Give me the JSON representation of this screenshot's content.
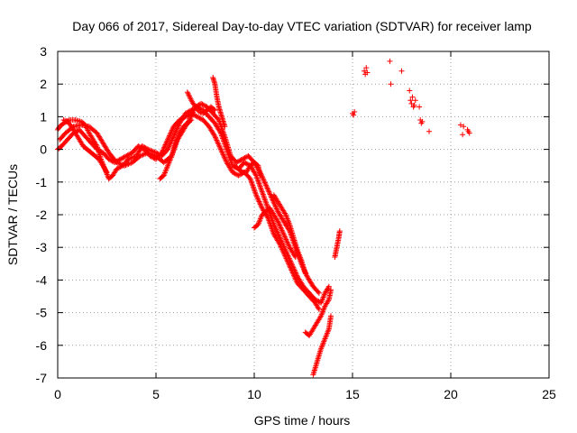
{
  "chart_data": {
    "type": "scatter",
    "title": "Day 066 of 2017, Sidereal Day-to-day VTEC variation (SDTVAR) for receiver lamp",
    "xlabel": "GPS time / hours",
    "ylabel": "SDTVAR / TECUs",
    "xlim": [
      0,
      25
    ],
    "ylim": [
      -7,
      3
    ],
    "xticks": [
      0,
      5,
      10,
      15,
      20,
      25
    ],
    "yticks": [
      -7,
      -6,
      -5,
      -4,
      -3,
      -2,
      -1,
      0,
      1,
      2,
      3
    ],
    "grid": true,
    "marker": "+",
    "colors": {
      "series": "#ff0000",
      "grid": "#a0a0a0",
      "axis": "#000000"
    },
    "series": [
      {
        "name": "SDTVAR",
        "tracks": [
          [
            [
              0,
              0.6
            ],
            [
              0.1,
              0.7
            ],
            [
              0.3,
              0.8
            ],
            [
              0.6,
              0.9
            ],
            [
              0.9,
              0.9
            ],
            [
              1.2,
              0.85
            ],
            [
              1.4,
              0.75
            ],
            [
              1.6,
              0.5
            ],
            [
              1.8,
              0.3
            ],
            [
              2.0,
              0.1
            ],
            [
              2.2,
              -0.3
            ],
            [
              2.4,
              -0.6
            ],
            [
              2.6,
              -0.9
            ],
            [
              2.8,
              -0.8
            ],
            [
              3.0,
              -0.6
            ],
            [
              3.3,
              -0.5
            ],
            [
              3.6,
              -0.3
            ],
            [
              4.0,
              -0.2
            ],
            [
              4.3,
              0.1
            ],
            [
              4.6,
              0.0
            ],
            [
              5.0,
              -0.1
            ],
            [
              5.3,
              -0.2
            ],
            [
              5.6,
              0.0
            ],
            [
              5.9,
              0.4
            ],
            [
              6.2,
              0.8
            ],
            [
              6.5,
              1.1
            ],
            [
              6.8,
              1.2
            ],
            [
              7.1,
              1.3
            ],
            [
              7.4,
              1.2
            ],
            [
              7.7,
              1.0
            ],
            [
              8.0,
              0.8
            ],
            [
              8.3,
              0.5
            ],
            [
              8.6,
              0.0
            ],
            [
              8.9,
              -0.5
            ],
            [
              9.2,
              -0.6
            ],
            [
              9.5,
              -0.4
            ],
            [
              9.8,
              -0.5
            ],
            [
              10.1,
              -0.8
            ],
            [
              10.4,
              -1.3
            ],
            [
              10.7,
              -1.8
            ],
            [
              11.0,
              -2.3
            ],
            [
              11.3,
              -2.7
            ],
            [
              11.6,
              -3.1
            ],
            [
              11.9,
              -3.5
            ],
            [
              12.2,
              -3.9
            ],
            [
              12.5,
              -4.2
            ],
            [
              12.8,
              -4.4
            ],
            [
              13.1,
              -4.6
            ],
            [
              13.4,
              -4.7
            ],
            [
              13.6,
              -4.4
            ],
            [
              13.8,
              -4.2
            ]
          ],
          [
            [
              0,
              0.0
            ],
            [
              0.2,
              0.1
            ],
            [
              0.5,
              0.3
            ],
            [
              0.8,
              0.5
            ],
            [
              1.1,
              0.6
            ],
            [
              1.4,
              0.4
            ],
            [
              1.7,
              0.2
            ],
            [
              2.0,
              0.0
            ],
            [
              2.3,
              -0.1
            ],
            [
              2.6,
              -0.3
            ],
            [
              2.9,
              -0.4
            ],
            [
              3.2,
              -0.3
            ],
            [
              3.5,
              -0.2
            ],
            [
              3.8,
              -0.1
            ],
            [
              4.1,
              0.1
            ],
            [
              4.4,
              0.0
            ],
            [
              4.7,
              -0.2
            ],
            [
              5.0,
              -0.3
            ],
            [
              5.3,
              -0.1
            ],
            [
              5.6,
              0.3
            ],
            [
              5.9,
              0.7
            ],
            [
              6.2,
              0.9
            ],
            [
              6.5,
              1.0
            ],
            [
              6.8,
              1.1
            ],
            [
              7.1,
              1.0
            ],
            [
              7.4,
              0.9
            ],
            [
              7.7,
              0.7
            ],
            [
              8.0,
              0.4
            ],
            [
              8.3,
              0.0
            ],
            [
              8.6,
              -0.4
            ],
            [
              8.9,
              -0.7
            ],
            [
              9.2,
              -0.8
            ],
            [
              9.5,
              -0.7
            ],
            [
              9.8,
              -0.9
            ],
            [
              10.1,
              -1.4
            ],
            [
              10.4,
              -1.8
            ],
            [
              10.7,
              -2.1
            ],
            [
              11.0,
              -2.6
            ],
            [
              11.3,
              -2.9
            ],
            [
              11.6,
              -3.3
            ],
            [
              11.9,
              -3.7
            ],
            [
              12.2,
              -4.1
            ],
            [
              12.5,
              -4.3
            ],
            [
              12.8,
              -4.5
            ],
            [
              13.1,
              -4.7
            ],
            [
              13.3,
              -4.9
            ]
          ],
          [
            [
              0.1,
              0.3
            ],
            [
              0.4,
              0.5
            ],
            [
              0.8,
              0.7
            ],
            [
              1.2,
              0.75
            ],
            [
              1.6,
              0.7
            ],
            [
              2.0,
              0.5
            ],
            [
              2.3,
              0.2
            ],
            [
              2.6,
              -0.1
            ],
            [
              3.0,
              -0.4
            ],
            [
              3.4,
              -0.5
            ],
            [
              3.8,
              -0.4
            ],
            [
              4.2,
              -0.2
            ],
            [
              4.6,
              -0.1
            ],
            [
              5.0,
              -0.2
            ],
            [
              5.4,
              -0.4
            ],
            [
              5.8,
              -0.2
            ],
            [
              6.1,
              0.3
            ],
            [
              6.4,
              0.6
            ],
            [
              6.7,
              0.9
            ],
            [
              7.0,
              1.3
            ],
            [
              7.3,
              1.4
            ],
            [
              7.6,
              1.3
            ],
            [
              7.9,
              1.1
            ],
            [
              8.2,
              0.9
            ],
            [
              8.5,
              0.4
            ],
            [
              8.8,
              -0.2
            ],
            [
              9.1,
              -0.4
            ],
            [
              9.4,
              -0.3
            ],
            [
              9.7,
              -0.2
            ],
            [
              10.0,
              -0.4
            ],
            [
              10.3,
              -0.7
            ],
            [
              10.6,
              -1.1
            ],
            [
              10.9,
              -1.5
            ],
            [
              11.2,
              -1.9
            ],
            [
              11.5,
              -2.2
            ],
            [
              11.8,
              -2.5
            ],
            [
              12.1,
              -3.0
            ],
            [
              12.4,
              -3.5
            ],
            [
              12.7,
              -3.9
            ],
            [
              13.0,
              -4.2
            ],
            [
              13.3,
              -4.4
            ]
          ],
          [
            [
              0.3,
              0.9
            ],
            [
              0.5,
              0.85
            ],
            [
              0.7,
              0.7
            ],
            [
              0.9,
              0.5
            ],
            [
              1.1,
              0.3
            ],
            [
              1.3,
              0.1
            ],
            [
              1.5,
              0.0
            ],
            [
              1.7,
              -0.1
            ],
            [
              1.9,
              -0.2
            ],
            [
              2.1,
              -0.3
            ],
            [
              2.3,
              -0.5
            ],
            [
              2.5,
              -0.7
            ]
          ],
          [
            [
              5.2,
              -0.9
            ],
            [
              5.4,
              -0.8
            ],
            [
              5.6,
              -0.5
            ],
            [
              5.8,
              -0.2
            ],
            [
              6.0,
              0.2
            ],
            [
              6.2,
              0.5
            ],
            [
              6.4,
              0.7
            ],
            [
              6.6,
              0.8
            ],
            [
              6.8,
              0.9
            ]
          ],
          [
            [
              6.6,
              1.75
            ],
            [
              6.8,
              1.5
            ],
            [
              7.0,
              1.3
            ],
            [
              7.2,
              1.15
            ],
            [
              7.4,
              1.1
            ],
            [
              7.6,
              1.2
            ],
            [
              7.8,
              1.3
            ],
            [
              8.0,
              1.2
            ]
          ],
          [
            [
              7.9,
              2.2
            ],
            [
              8.0,
              2.0
            ],
            [
              8.1,
              1.6
            ],
            [
              8.2,
              1.3
            ],
            [
              8.3,
              1.1
            ],
            [
              8.4,
              0.9
            ],
            [
              8.5,
              0.7
            ]
          ],
          [
            [
              9.0,
              -0.5
            ],
            [
              9.2,
              -0.6
            ],
            [
              9.4,
              -0.7
            ],
            [
              9.6,
              -0.7
            ],
            [
              9.8,
              -0.5
            ],
            [
              10.0,
              -0.4
            ],
            [
              10.2,
              -0.5
            ],
            [
              10.3,
              -0.8
            ]
          ],
          [
            [
              10.0,
              -2.4
            ],
            [
              10.2,
              -2.3
            ],
            [
              10.4,
              -2.0
            ],
            [
              10.6,
              -1.9
            ],
            [
              10.8,
              -1.8
            ],
            [
              11.0,
              -2.0
            ],
            [
              11.2,
              -2.2
            ],
            [
              11.5,
              -2.6
            ],
            [
              11.8,
              -3.0
            ],
            [
              12.1,
              -3.3
            ]
          ],
          [
            [
              11.0,
              -1.4
            ],
            [
              11.2,
              -1.6
            ],
            [
              11.4,
              -1.8
            ],
            [
              11.6,
              -2.0
            ],
            [
              11.8,
              -2.3
            ],
            [
              12.0,
              -2.7
            ],
            [
              12.2,
              -3.1
            ],
            [
              12.4,
              -3.4
            ],
            [
              12.6,
              -3.8
            ]
          ],
          [
            [
              13.0,
              -6.9
            ],
            [
              13.2,
              -6.5
            ],
            [
              13.4,
              -6.1
            ],
            [
              13.6,
              -5.8
            ],
            [
              13.8,
              -5.5
            ],
            [
              13.9,
              -5.1
            ]
          ],
          [
            [
              12.6,
              -5.6
            ],
            [
              12.8,
              -5.7
            ],
            [
              13.0,
              -5.5
            ],
            [
              13.2,
              -5.3
            ],
            [
              13.4,
              -5.1
            ],
            [
              13.6,
              -4.8
            ],
            [
              13.8,
              -4.6
            ],
            [
              13.9,
              -4.3
            ]
          ],
          [
            [
              14.1,
              -3.3
            ],
            [
              14.2,
              -3.0
            ],
            [
              14.3,
              -2.7
            ],
            [
              14.35,
              -2.5
            ]
          ]
        ],
        "points": [
          [
            15.0,
            1.1
          ],
          [
            15.05,
            1.05
          ],
          [
            15.1,
            1.15
          ],
          [
            15.6,
            2.4
          ],
          [
            15.65,
            2.3
          ],
          [
            15.7,
            2.5
          ],
          [
            15.75,
            2.35
          ],
          [
            16.9,
            2.7
          ],
          [
            16.95,
            2.0
          ],
          [
            17.5,
            2.4
          ],
          [
            17.9,
            1.8
          ],
          [
            17.95,
            1.5
          ],
          [
            18.0,
            1.4
          ],
          [
            18.05,
            1.6
          ],
          [
            18.1,
            1.3
          ],
          [
            18.15,
            1.35
          ],
          [
            18.2,
            1.5
          ],
          [
            18.4,
            1.3
          ],
          [
            18.45,
            0.9
          ],
          [
            18.5,
            0.8
          ],
          [
            18.55,
            0.85
          ],
          [
            18.9,
            0.55
          ],
          [
            20.5,
            0.75
          ],
          [
            20.6,
            0.45
          ],
          [
            20.65,
            0.7
          ],
          [
            20.85,
            0.6
          ],
          [
            20.9,
            0.55
          ],
          [
            20.95,
            0.5
          ]
        ]
      }
    ]
  }
}
